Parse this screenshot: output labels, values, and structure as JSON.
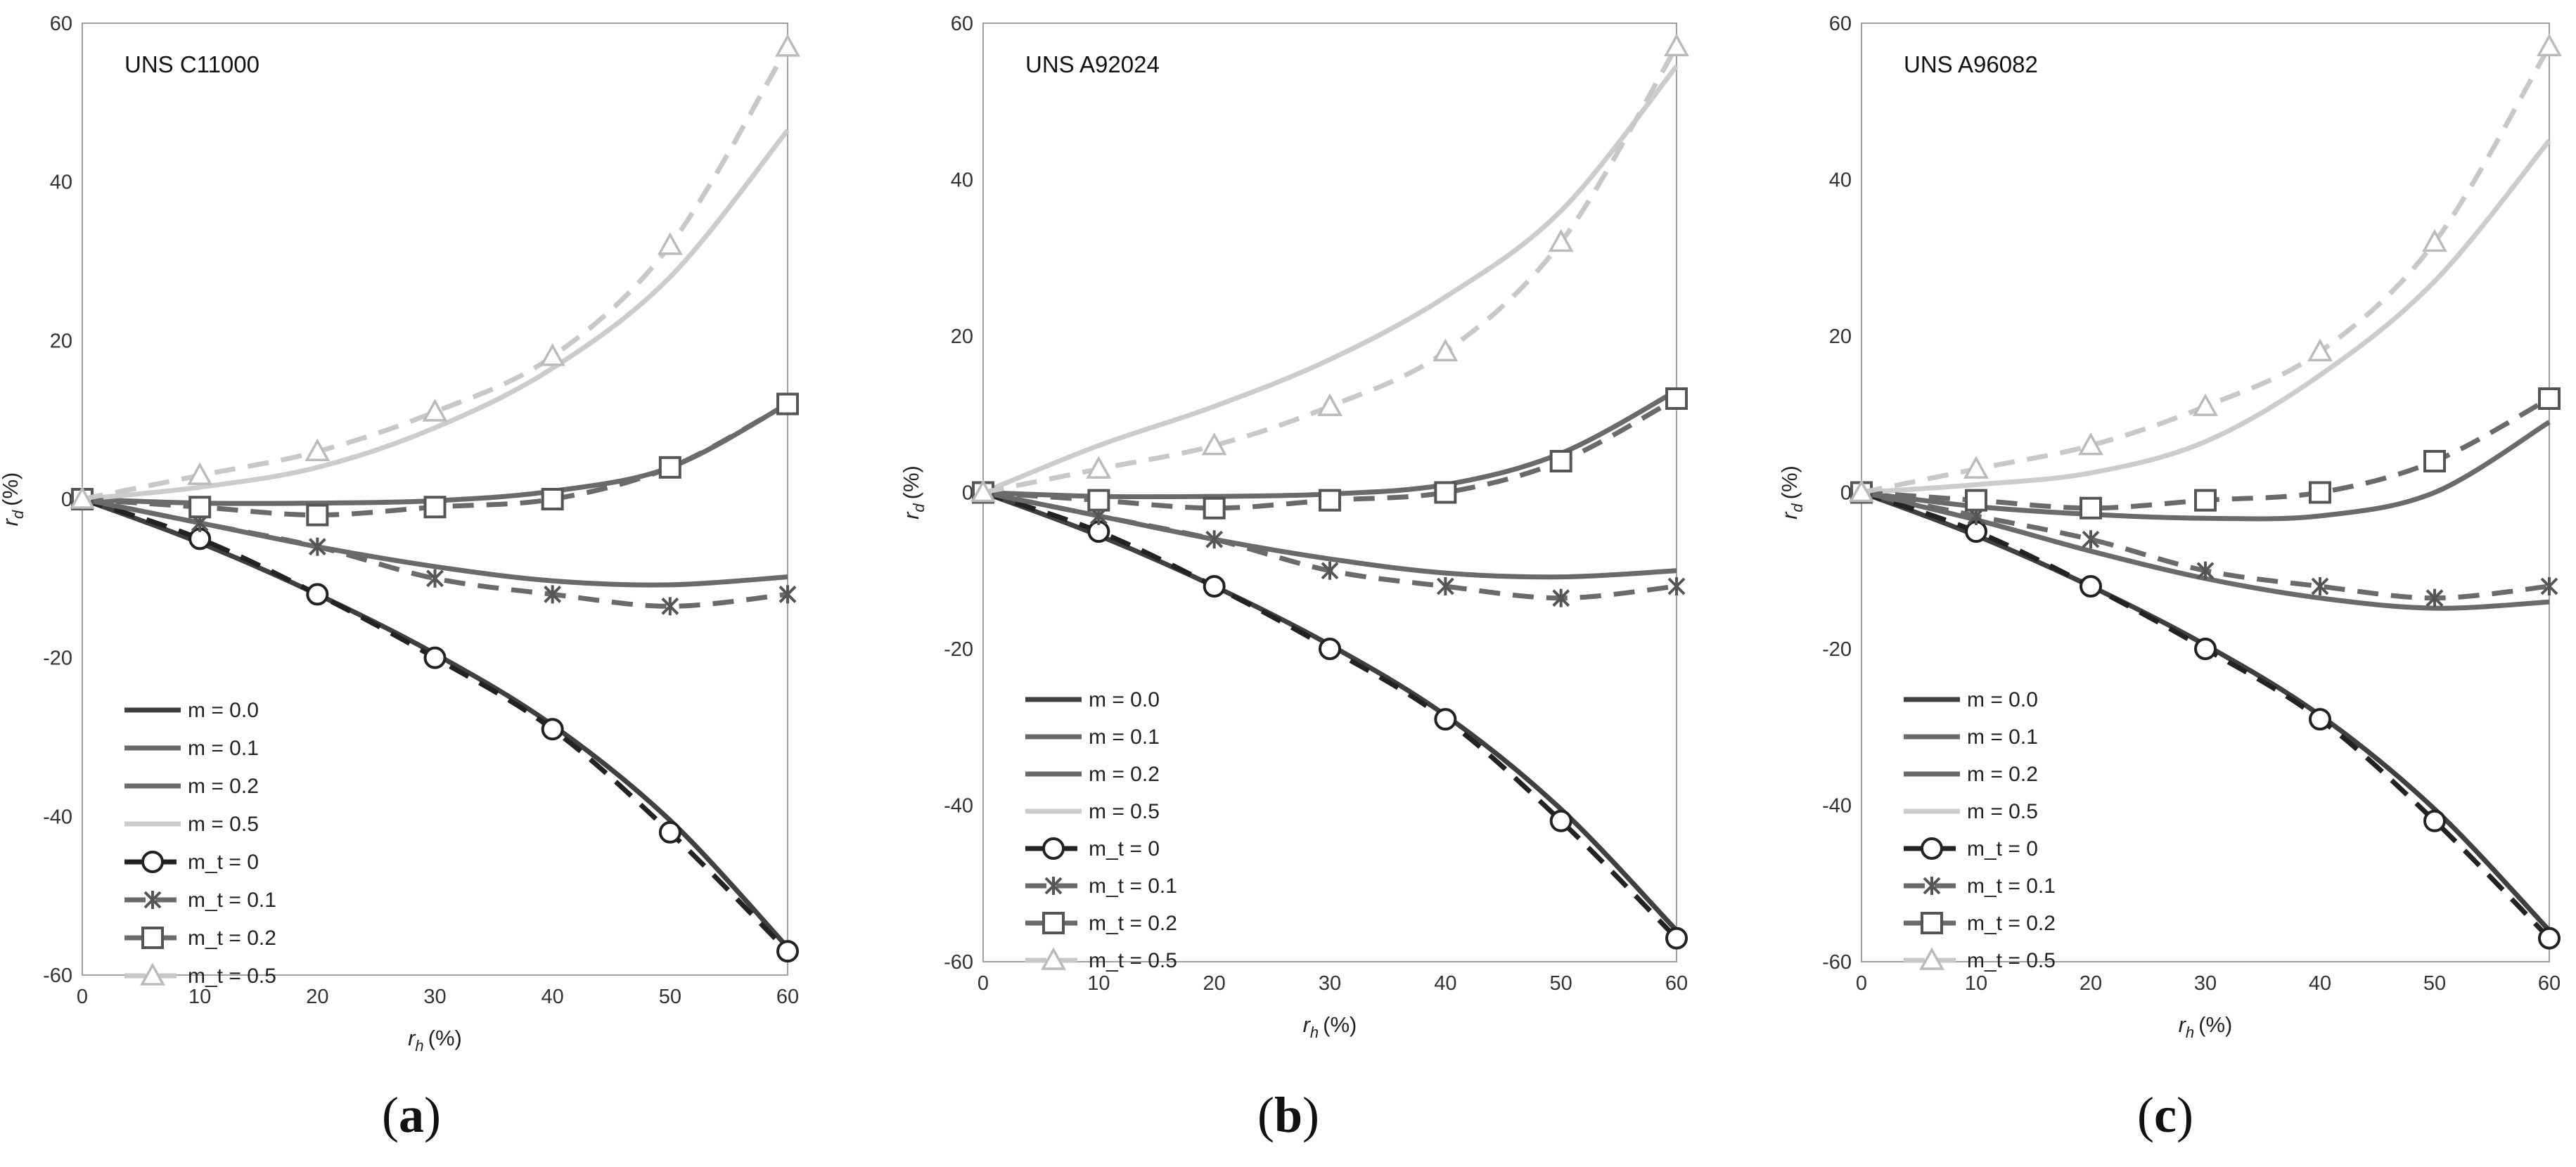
{
  "chart_data": [
    {
      "type": "line",
      "title": "UNS C11000",
      "caption": "a",
      "xlabel": "r",
      "xlabel_sub": "h",
      "xlabel_unit": "(%)",
      "ylabel": "r",
      "ylabel_sub": "d",
      "ylabel_unit": "(%)",
      "xlim": [
        0,
        60
      ],
      "ylim": [
        -60,
        60
      ],
      "xticks": [
        "0",
        "10",
        "20",
        "30",
        "40",
        "50",
        "60"
      ],
      "yticks": [
        "-60",
        "-40",
        "-20",
        "0",
        "20",
        "40",
        "60"
      ],
      "legend_position": "bottom-left",
      "series": [
        {
          "name": "m = 0.0",
          "style": "solid",
          "color": "#404040",
          "x": [
            0,
            10,
            20,
            30,
            40,
            50,
            60
          ],
          "y": [
            0,
            -5.5,
            -12,
            -19.5,
            -28.5,
            -40.5,
            -56.5
          ]
        },
        {
          "name": "m = 0.1",
          "style": "solid",
          "color": "#6a6a6a",
          "x": [
            0,
            10,
            20,
            30,
            40,
            50,
            60
          ],
          "y": [
            0,
            -3,
            -6,
            -8.5,
            -10.3,
            -10.8,
            -9.8
          ]
        },
        {
          "name": "m = 0.2",
          "style": "solid",
          "color": "#6a6a6a",
          "x": [
            0,
            10,
            20,
            30,
            40,
            50,
            60
          ],
          "y": [
            0,
            -0.5,
            -0.5,
            -0.2,
            1,
            4,
            12
          ]
        },
        {
          "name": "m = 0.5",
          "style": "solid",
          "color": "#cccccc",
          "x": [
            0,
            10,
            20,
            30,
            40,
            50,
            60
          ],
          "y": [
            0,
            1.5,
            4,
            9,
            16.5,
            28,
            46.5
          ]
        },
        {
          "name": "m_t = 0",
          "style": "dashed",
          "marker": "circle",
          "color": "#222222",
          "x": [
            0,
            10,
            20,
            30,
            40,
            50,
            60
          ],
          "y": [
            0,
            -5,
            -12,
            -20,
            -29,
            -42,
            -57
          ]
        },
        {
          "name": "m_t = 0.1",
          "style": "dashed",
          "marker": "star",
          "color": "#6a6a6a",
          "x": [
            0,
            10,
            20,
            30,
            40,
            50,
            60
          ],
          "y": [
            0,
            -3,
            -6,
            -10,
            -12,
            -13.5,
            -12
          ]
        },
        {
          "name": "m_t = 0.2",
          "style": "dashed",
          "marker": "square",
          "color": "#6a6a6a",
          "x": [
            0,
            10,
            20,
            30,
            40,
            50,
            60
          ],
          "y": [
            0,
            -1,
            -2,
            -1,
            0,
            4,
            12
          ]
        },
        {
          "name": "m_t = 0.5",
          "style": "dashed",
          "marker": "triangle",
          "color": "#c8c8c8",
          "x": [
            0,
            10,
            20,
            30,
            40,
            50,
            60
          ],
          "y": [
            0,
            3,
            6,
            11,
            18,
            32,
            57
          ]
        }
      ]
    },
    {
      "type": "line",
      "title": "UNS A92024",
      "caption": "b",
      "xlabel": "r",
      "xlabel_sub": "h",
      "xlabel_unit": "(%)",
      "ylabel": "r",
      "ylabel_sub": "d",
      "ylabel_unit": "(%)",
      "xlim": [
        0,
        60
      ],
      "ylim": [
        -60,
        60
      ],
      "xticks": [
        "0",
        "10",
        "20",
        "30",
        "40",
        "50",
        "60"
      ],
      "yticks": [
        "-60",
        "-40",
        "-20",
        "0",
        "20",
        "40",
        "60"
      ],
      "legend_position": "bottom-left",
      "series": [
        {
          "name": "m = 0.0",
          "style": "solid",
          "color": "#404040",
          "x": [
            0,
            10,
            20,
            30,
            40,
            50,
            60
          ],
          "y": [
            0,
            -5.5,
            -12,
            -19.5,
            -28.5,
            -40.5,
            -56
          ]
        },
        {
          "name": "m = 0.1",
          "style": "solid",
          "color": "#6a6a6a",
          "x": [
            0,
            10,
            20,
            30,
            40,
            50,
            60
          ],
          "y": [
            0,
            -3,
            -6,
            -8.5,
            -10.3,
            -10.8,
            -10
          ]
        },
        {
          "name": "m = 0.2",
          "style": "solid",
          "color": "#6a6a6a",
          "x": [
            0,
            10,
            20,
            30,
            40,
            50,
            60
          ],
          "y": [
            0,
            -0.5,
            -0.5,
            -0.2,
            1,
            5,
            13
          ]
        },
        {
          "name": "m = 0.5",
          "style": "solid",
          "color": "#cccccc",
          "x": [
            0,
            10,
            20,
            30,
            40,
            50,
            60
          ],
          "y": [
            0,
            6,
            11,
            17,
            25,
            36,
            54.5
          ]
        },
        {
          "name": "m_t = 0",
          "style": "dashed",
          "marker": "circle",
          "color": "#222222",
          "x": [
            0,
            10,
            20,
            30,
            40,
            50,
            60
          ],
          "y": [
            0,
            -5,
            -12,
            -20,
            -29,
            -42,
            -57
          ]
        },
        {
          "name": "m_t = 0.1",
          "style": "dashed",
          "marker": "star",
          "color": "#6a6a6a",
          "x": [
            0,
            10,
            20,
            30,
            40,
            50,
            60
          ],
          "y": [
            0,
            -3,
            -6,
            -10,
            -12,
            -13.5,
            -12
          ]
        },
        {
          "name": "m_t = 0.2",
          "style": "dashed",
          "marker": "square",
          "color": "#6a6a6a",
          "x": [
            0,
            10,
            20,
            30,
            40,
            50,
            60
          ],
          "y": [
            0,
            -1,
            -2,
            -1,
            0,
            4,
            12
          ]
        },
        {
          "name": "m_t = 0.5",
          "style": "dashed",
          "marker": "triangle",
          "color": "#c8c8c8",
          "x": [
            0,
            10,
            20,
            30,
            40,
            50,
            60
          ],
          "y": [
            0,
            3,
            6,
            11,
            18,
            32,
            57
          ]
        }
      ]
    },
    {
      "type": "line",
      "title": "UNS A96082",
      "caption": "c",
      "xlabel": "r",
      "xlabel_sub": "h",
      "xlabel_unit": "(%)",
      "ylabel": "r",
      "ylabel_sub": "d",
      "ylabel_unit": "(%)",
      "xlim": [
        0,
        60
      ],
      "ylim": [
        -60,
        60
      ],
      "xticks": [
        "0",
        "10",
        "20",
        "30",
        "40",
        "50",
        "60"
      ],
      "yticks": [
        "-60",
        "-40",
        "-20",
        "0",
        "20",
        "40",
        "60"
      ],
      "legend_position": "bottom-left",
      "series": [
        {
          "name": "m = 0.0",
          "style": "solid",
          "color": "#404040",
          "x": [
            0,
            10,
            20,
            30,
            40,
            50,
            60
          ],
          "y": [
            0,
            -5.5,
            -12,
            -19.5,
            -28.5,
            -40.5,
            -56
          ]
        },
        {
          "name": "m = 0.1",
          "style": "solid",
          "color": "#6a6a6a",
          "x": [
            0,
            10,
            20,
            30,
            40,
            50,
            60
          ],
          "y": [
            0,
            -3.5,
            -7.5,
            -11,
            -13.5,
            -14.8,
            -14
          ]
        },
        {
          "name": "m = 0.2",
          "style": "solid",
          "color": "#6a6a6a",
          "x": [
            0,
            10,
            20,
            30,
            40,
            50,
            60
          ],
          "y": [
            0,
            -1.8,
            -2.8,
            -3.3,
            -3,
            0,
            9
          ]
        },
        {
          "name": "m = 0.5",
          "style": "solid",
          "color": "#cccccc",
          "x": [
            0,
            10,
            20,
            30,
            40,
            50,
            60
          ],
          "y": [
            0,
            1,
            2.5,
            6.5,
            15,
            27,
            45
          ]
        },
        {
          "name": "m_t = 0",
          "style": "dashed",
          "marker": "circle",
          "color": "#222222",
          "x": [
            0,
            10,
            20,
            30,
            40,
            50,
            60
          ],
          "y": [
            0,
            -5,
            -12,
            -20,
            -29,
            -42,
            -57
          ]
        },
        {
          "name": "m_t = 0.1",
          "style": "dashed",
          "marker": "star",
          "color": "#6a6a6a",
          "x": [
            0,
            10,
            20,
            30,
            40,
            50,
            60
          ],
          "y": [
            0,
            -3,
            -6,
            -10,
            -12,
            -13.5,
            -12
          ]
        },
        {
          "name": "m_t = 0.2",
          "style": "dashed",
          "marker": "square",
          "color": "#6a6a6a",
          "x": [
            0,
            10,
            20,
            30,
            40,
            50,
            60
          ],
          "y": [
            0,
            -1,
            -2,
            -1,
            0,
            4,
            12
          ]
        },
        {
          "name": "m_t = 0.5",
          "style": "dashed",
          "marker": "triangle",
          "color": "#c8c8c8",
          "x": [
            0,
            10,
            20,
            30,
            40,
            50,
            60
          ],
          "y": [
            0,
            3,
            6,
            11,
            18,
            32,
            57
          ]
        }
      ]
    }
  ]
}
